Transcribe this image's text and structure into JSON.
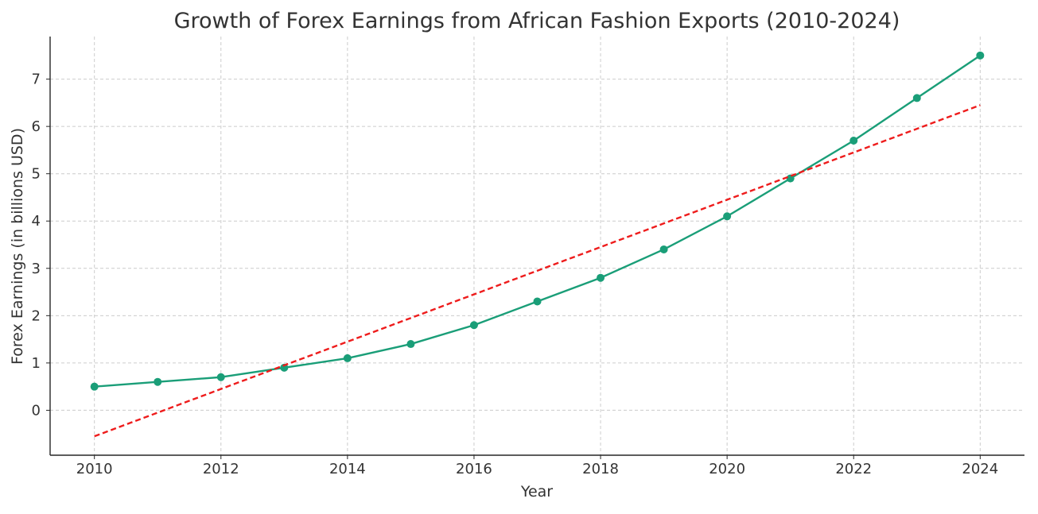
{
  "chart_data": {
    "type": "line",
    "title": "Growth of Forex Earnings from African Fashion Exports (2010-2024)",
    "xlabel": "Year",
    "ylabel": "Forex Earnings (in billions USD)",
    "xlim": [
      2009.3,
      2024.7
    ],
    "ylim": [
      -0.95,
      7.9
    ],
    "xticks": [
      2010,
      2012,
      2014,
      2016,
      2018,
      2020,
      2022,
      2024
    ],
    "yticks": [
      0,
      1,
      2,
      3,
      4,
      5,
      6,
      7
    ],
    "grid": true,
    "series": [
      {
        "style": "solid-line-with-markers",
        "color": "#1a9e78",
        "x": [
          2010,
          2011,
          2012,
          2013,
          2014,
          2015,
          2016,
          2017,
          2018,
          2019,
          2020,
          2021,
          2022,
          2023,
          2024
        ],
        "values": [
          0.5,
          0.6,
          0.7,
          0.9,
          1.1,
          1.4,
          1.8,
          2.3,
          2.8,
          3.4,
          4.1,
          4.9,
          5.7,
          6.6,
          7.5
        ]
      },
      {
        "style": "dashed-trend-line",
        "color": "#ee1c1c",
        "x": [
          2010,
          2024
        ],
        "values": [
          -0.55,
          6.45
        ]
      }
    ]
  }
}
